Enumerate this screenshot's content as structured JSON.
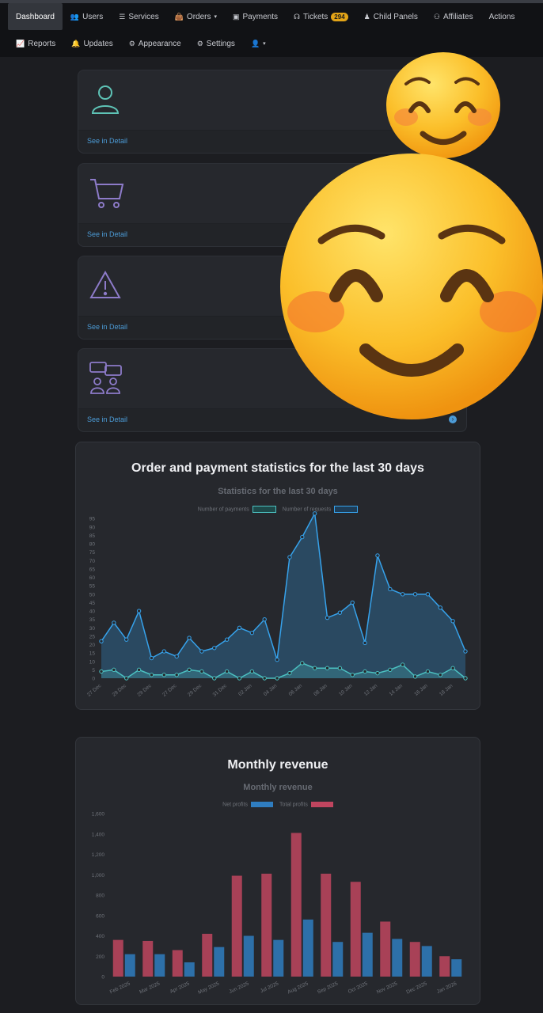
{
  "nav": {
    "row1": [
      {
        "label": "Dashboard",
        "icon": "",
        "active": true
      },
      {
        "label": "Users",
        "icon": "users-icon"
      },
      {
        "label": "Services",
        "icon": "list-icon"
      },
      {
        "label": "Orders",
        "icon": "bag-icon",
        "caret": true
      },
      {
        "label": "Payments",
        "icon": "money-icon"
      },
      {
        "label": "Tickets",
        "icon": "headset-icon",
        "badge": "294"
      },
      {
        "label": "Child Panels",
        "icon": "child-icon"
      },
      {
        "label": "Affiliates",
        "icon": "network-icon"
      },
      {
        "label": "Actions",
        "icon": ""
      }
    ],
    "row2": [
      {
        "label": "Reports",
        "icon": "chart-icon"
      },
      {
        "label": "Updates",
        "icon": "bell-icon"
      },
      {
        "label": "Appearance",
        "icon": "gear-icon"
      },
      {
        "label": "Settings",
        "icon": "gear-icon"
      },
      {
        "label": "",
        "icon": "user-icon",
        "caret": true
      }
    ]
  },
  "cards": [
    {
      "icon": "user-icon",
      "link": "See in Detail"
    },
    {
      "icon": "cart-icon",
      "link": "See in Detail"
    },
    {
      "icon": "warning-icon",
      "link": "See in Detail"
    },
    {
      "icon": "chat-group-icon",
      "link": "See in Detail"
    }
  ],
  "orders_panel": {
    "heading": "Order and payment statistics for the last 30 days"
  },
  "revenue_panel": {
    "heading": "Monthly revenue"
  },
  "colors": {
    "requests": "#36a2eb",
    "payments": "#4bc0c0",
    "net": "#2f7dc0",
    "total": "#c0455f"
  },
  "chart_data": [
    {
      "type": "line",
      "title": "Statistics for the last 30 days",
      "series": [
        {
          "name": "Number of payments",
          "values": [
            4,
            5,
            0,
            5,
            2,
            2,
            2,
            5,
            4,
            0,
            4,
            0,
            4,
            0,
            0,
            3,
            9,
            6,
            6,
            6,
            2,
            4,
            3,
            5,
            8,
            1,
            4,
            2,
            6,
            0
          ]
        },
        {
          "name": "Number of requests",
          "values": [
            22,
            33,
            23,
            40,
            12,
            16,
            13,
            24,
            16,
            18,
            23,
            30,
            27,
            35,
            11,
            72,
            84,
            98,
            36,
            39,
            45,
            21,
            73,
            53,
            50,
            50,
            50,
            42,
            34,
            16
          ]
        }
      ],
      "x_tick_labels": [
        "27 Dec",
        "29 Dec",
        "29 Dec",
        "27 Dec",
        "29 Dec",
        "31 Dec",
        "02 Jan",
        "04 Jan",
        "06 Jan",
        "08 Jan",
        "10 Jan",
        "12 Jan",
        "14 Jan",
        "16 Jan",
        "18 Jan"
      ],
      "y_ticks": [
        0,
        5,
        10,
        15,
        20,
        25,
        30,
        35,
        40,
        45,
        50,
        55,
        60,
        65,
        70,
        75,
        80,
        85,
        90,
        95
      ],
      "ylim": [
        0,
        97
      ],
      "legend": "top"
    },
    {
      "type": "bar",
      "title": "Monthly revenue",
      "categories": [
        "Feb 2025",
        "Mar 2025",
        "Apr 2025",
        "May 2025",
        "Jun 2025",
        "Jul 2025",
        "Aug 2025",
        "Sep 2025",
        "Oct 2025",
        "Nov 2025",
        "Dec 2025",
        "Jan 2026"
      ],
      "series": [
        {
          "name": "Net profits",
          "values": [
            220,
            220,
            140,
            290,
            400,
            360,
            560,
            340,
            430,
            370,
            300,
            170
          ]
        },
        {
          "name": "Total profits",
          "values": [
            360,
            350,
            260,
            420,
            990,
            1010,
            1410,
            1010,
            930,
            540,
            340,
            200
          ]
        }
      ],
      "y_ticks": [
        "0",
        "200",
        "400",
        "600",
        "800",
        "1,000",
        "1,200",
        "1,400",
        "1,600"
      ],
      "ylim": [
        0,
        1600
      ],
      "legend": "top"
    }
  ]
}
